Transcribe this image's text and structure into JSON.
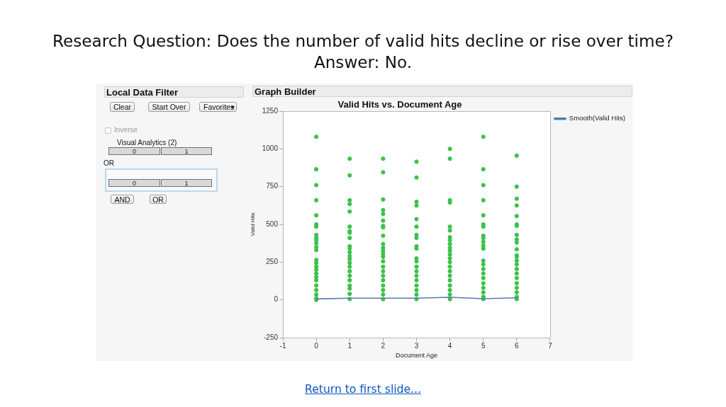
{
  "chart_data": {
    "type": "scatter",
    "title": "Valid Hits vs. Document Age",
    "xlabel": "Document Age",
    "ylabel": "Valid Hits",
    "xlim": [
      -1,
      7
    ],
    "xticks": [
      -1,
      0,
      1,
      2,
      3,
      4,
      5,
      6,
      7
    ],
    "ylim": [
      -250,
      1250
    ],
    "yticks": [
      -250,
      0,
      250,
      500,
      750,
      1000,
      1250
    ],
    "legend": "right",
    "marker": "circle",
    "series": [
      {
        "type": "scatter",
        "color": "#3cc24a",
        "x": [
          0,
          0,
          0,
          0,
          0,
          0,
          0,
          0,
          0,
          0,
          0,
          0,
          0,
          0,
          0,
          0,
          0,
          0,
          0,
          0,
          0,
          0,
          0,
          0,
          0,
          1,
          1,
          1,
          1,
          1,
          1,
          1,
          1,
          1,
          1,
          1,
          1,
          1,
          1,
          1,
          1,
          1,
          1,
          1,
          1,
          1,
          1,
          1,
          2,
          2,
          2,
          2,
          2,
          2,
          2,
          2,
          2,
          2,
          2,
          2,
          2,
          2,
          2,
          2,
          2,
          2,
          2,
          2,
          2,
          2,
          2,
          3,
          3,
          3,
          3,
          3,
          3,
          3,
          3,
          3,
          3,
          3,
          3,
          3,
          3,
          3,
          3,
          3,
          3,
          3,
          3,
          4,
          4,
          4,
          4,
          4,
          4,
          4,
          4,
          4,
          4,
          4,
          4,
          4,
          4,
          4,
          4,
          4,
          4,
          4,
          4,
          4,
          4,
          5,
          5,
          5,
          5,
          5,
          5,
          5,
          5,
          5,
          5,
          5,
          5,
          5,
          5,
          5,
          5,
          5,
          5,
          5,
          5,
          5,
          5,
          6,
          6,
          6,
          6,
          6,
          6,
          6,
          6,
          6,
          6,
          6,
          6,
          6,
          6,
          6,
          6,
          6,
          6,
          6,
          6,
          6,
          6,
          6
        ],
        "values": [
          1080,
          865,
          760,
          660,
          560,
          500,
          485,
          430,
          410,
          395,
          375,
          350,
          330,
          265,
          245,
          220,
          200,
          175,
          150,
          130,
          95,
          65,
          35,
          10,
          0,
          935,
          825,
          660,
          635,
          585,
          485,
          455,
          445,
          410,
          355,
          340,
          315,
          290,
          270,
          245,
          220,
          190,
          160,
          130,
          95,
          75,
          40,
          5,
          935,
          845,
          665,
          595,
          570,
          525,
          490,
          480,
          425,
          370,
          345,
          325,
          305,
          285,
          255,
          220,
          190,
          160,
          130,
          95,
          65,
          35,
          5,
          915,
          810,
          650,
          625,
          535,
          485,
          430,
          410,
          355,
          340,
          275,
          255,
          220,
          190,
          160,
          130,
          95,
          65,
          35,
          5,
          1000,
          935,
          660,
          645,
          485,
          460,
          415,
          395,
          370,
          345,
          325,
          300,
          275,
          250,
          220,
          190,
          160,
          130,
          95,
          65,
          35,
          5,
          1080,
          865,
          760,
          660,
          560,
          500,
          485,
          425,
          410,
          385,
          360,
          340,
          260,
          235,
          205,
          175,
          145,
          110,
          80,
          50,
          20,
          5,
          955,
          750,
          670,
          625,
          555,
          500,
          490,
          430,
          400,
          380,
          335,
          295,
          285,
          260,
          235,
          205,
          175,
          145,
          110,
          80,
          50,
          20,
          5
        ]
      },
      {
        "type": "line",
        "name": "Smooth(Valid Hits)",
        "color": "#5b79b0",
        "marker": "none",
        "x": [
          0,
          1,
          2,
          3,
          4,
          5,
          6
        ],
        "values": [
          6,
          11,
          11,
          11,
          17,
          8,
          14
        ]
      }
    ],
    "annotations": [
      "Research Question: Does the number of valid hits decline or rise over time?",
      "Answer: No.",
      "Return to first slide...",
      "Local Data Filter",
      "Clear",
      "Start Over",
      "Favorites",
      "Inverse",
      "Visual Analytics (2)",
      "0",
      "1",
      "OR",
      "0",
      "1",
      "AND",
      "OR",
      "Graph Builder"
    ]
  }
}
